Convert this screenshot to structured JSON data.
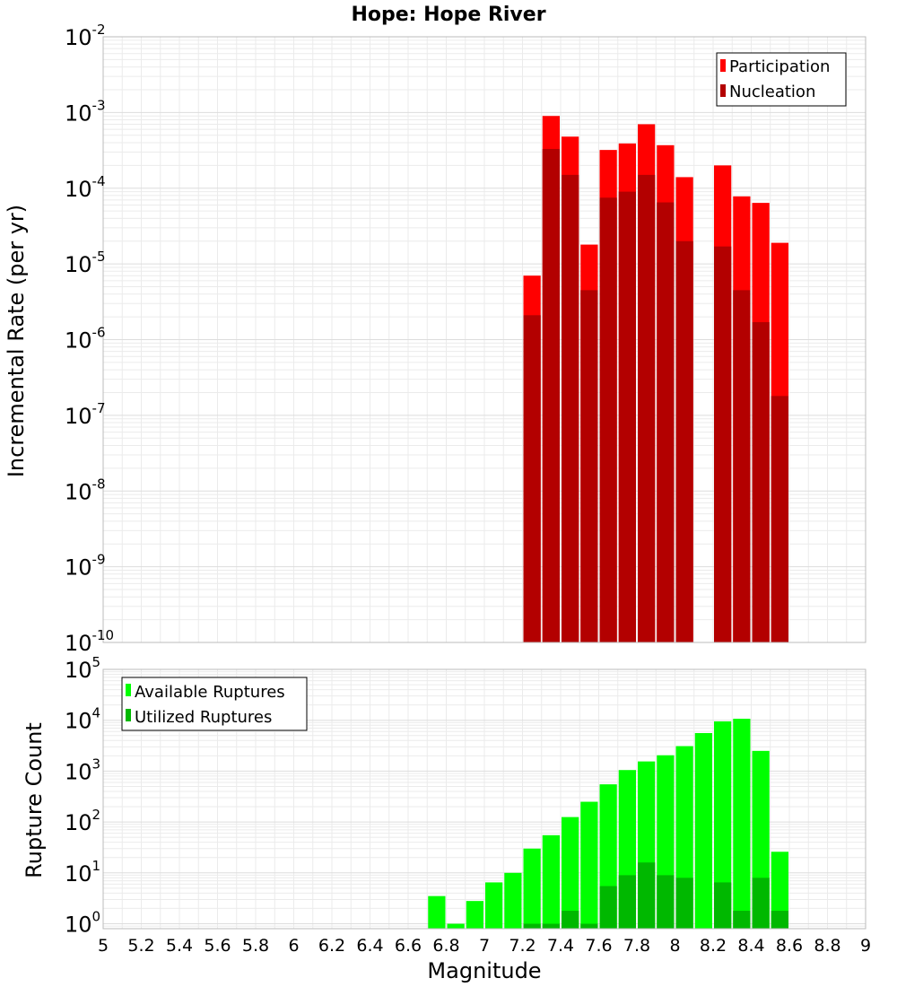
{
  "title": "Hope: Hope River",
  "xlabel": "Magnitude",
  "colors": {
    "participation": "#ff0000",
    "nucleation": "#b30000",
    "available": "#00ff00",
    "utilized": "#00b800",
    "grid": "#ebebeb",
    "frame": "#bbbbbb"
  },
  "chart_data": [
    {
      "type": "bar",
      "title": "Hope: Hope River",
      "ylabel": "Incremental Rate (per yr)",
      "xlabel": "",
      "yscale": "log",
      "ylim": [
        1e-10,
        0.01
      ],
      "xlim": [
        5,
        9
      ],
      "legend_position": "top-right",
      "y_tick_labels": [
        {
          "base": "10",
          "exp": "-10"
        },
        {
          "base": "10",
          "exp": "-9"
        },
        {
          "base": "10",
          "exp": "-8"
        },
        {
          "base": "10",
          "exp": "-7"
        },
        {
          "base": "10",
          "exp": "-6"
        },
        {
          "base": "10",
          "exp": "-5"
        },
        {
          "base": "10",
          "exp": "-4"
        },
        {
          "base": "10",
          "exp": "-3"
        },
        {
          "base": "10",
          "exp": "-2"
        }
      ],
      "x": [
        7.25,
        7.35,
        7.45,
        7.55,
        7.65,
        7.75,
        7.85,
        7.95,
        8.05,
        8.25,
        8.35,
        8.45,
        8.55
      ],
      "series": [
        {
          "name": "Participation",
          "values": [
            7e-06,
            0.0009,
            0.00048,
            1.8e-05,
            0.00032,
            0.00039,
            0.0007,
            0.00037,
            0.00014,
            0.0002,
            7.8e-05,
            6.4e-05,
            1.9e-05
          ]
        },
        {
          "name": "Nucleation",
          "values": [
            2.1e-06,
            0.00033,
            0.00015,
            4.5e-06,
            7.5e-05,
            9e-05,
            0.00015,
            6.5e-05,
            2e-05,
            1.7e-05,
            4.5e-06,
            1.7e-06,
            1.8e-07
          ]
        }
      ]
    },
    {
      "type": "bar",
      "title": "",
      "ylabel": "Rupture Count",
      "xlabel": "Magnitude",
      "yscale": "log",
      "ylim": [
        0.8,
        100000.0
      ],
      "xlim": [
        5,
        9
      ],
      "legend_position": "top-left",
      "y_tick_labels": [
        {
          "base": "10",
          "exp": "0"
        },
        {
          "base": "10",
          "exp": "1"
        },
        {
          "base": "10",
          "exp": "2"
        },
        {
          "base": "10",
          "exp": "3"
        },
        {
          "base": "10",
          "exp": "4"
        },
        {
          "base": "10",
          "exp": "5"
        }
      ],
      "x_tick_labels": [
        "5",
        "5.2",
        "5.4",
        "5.6",
        "5.8",
        "6",
        "6.2",
        "6.4",
        "6.6",
        "6.8",
        "7",
        "7.2",
        "7.4",
        "7.6",
        "7.8",
        "8",
        "8.2",
        "8.4",
        "8.6",
        "8.8",
        "9"
      ],
      "x": [
        6.75,
        6.85,
        6.95,
        7.05,
        7.15,
        7.25,
        7.35,
        7.45,
        7.55,
        7.65,
        7.75,
        7.85,
        7.95,
        8.05,
        8.15,
        8.25,
        8.35,
        8.45,
        8.55
      ],
      "series": [
        {
          "name": "Available Ruptures",
          "values": [
            3.5,
            1,
            2.8,
            6.5,
            10,
            30,
            55,
            125,
            250,
            550,
            1050,
            1550,
            2050,
            3100,
            5600,
            9500,
            10700,
            2500,
            26
          ]
        },
        {
          "name": "Utilized Ruptures",
          "values": [
            0,
            0,
            0,
            0,
            0,
            1,
            1,
            1.8,
            1,
            5.5,
            9,
            16,
            9,
            8,
            0,
            6.5,
            1.8,
            8,
            1.8
          ]
        }
      ]
    }
  ]
}
